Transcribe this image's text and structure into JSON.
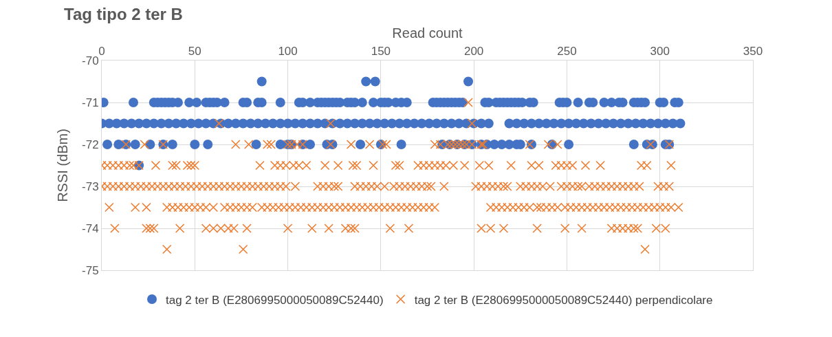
{
  "chart_data": {
    "type": "scatter",
    "title": "Tag tipo 2 ter B",
    "xlabel": "Read count",
    "ylabel": "RSSI (dBm)",
    "xlim": [
      0,
      350
    ],
    "xticks": [
      0,
      50,
      100,
      150,
      200,
      250,
      300,
      350
    ],
    "ylim": [
      -75,
      -70
    ],
    "yticks": [
      -75,
      -74,
      -73,
      -72,
      -71,
      -70
    ],
    "grid": true,
    "legend": "bottom",
    "series": [
      {
        "name": "tag 2 ter B (E2806995000050089C52440)",
        "color": "#4472c4",
        "marker": "circle",
        "x": [
          86,
          142,
          147,
          197,
          1,
          17,
          28,
          30,
          32,
          34,
          36,
          38,
          41,
          47,
          51,
          56,
          58,
          60,
          62,
          66,
          76,
          78,
          84,
          86,
          96,
          106,
          108,
          112,
          116,
          118,
          120,
          122,
          124,
          126,
          128,
          132,
          134,
          136,
          140,
          146,
          150,
          152,
          154,
          158,
          161,
          164,
          178,
          180,
          182,
          184,
          186,
          188,
          190,
          192,
          194,
          206,
          208,
          212,
          214,
          216,
          218,
          220,
          222,
          224,
          226,
          230,
          232,
          246,
          248,
          250,
          256,
          262,
          264,
          270,
          274,
          278,
          280,
          286,
          288,
          290,
          292,
          300,
          302,
          308,
          310,
          0,
          4,
          8,
          12,
          16,
          20,
          24,
          28,
          32,
          36,
          40,
          44,
          48,
          52,
          56,
          60,
          64,
          68,
          72,
          76,
          80,
          84,
          88,
          92,
          96,
          100,
          104,
          108,
          112,
          116,
          120,
          124,
          128,
          132,
          136,
          140,
          144,
          148,
          152,
          156,
          160,
          164,
          168,
          172,
          176,
          180,
          184,
          188,
          192,
          196,
          200,
          204,
          208,
          219,
          223,
          227,
          231,
          235,
          239,
          243,
          247,
          251,
          255,
          259,
          263,
          267,
          271,
          275,
          279,
          283,
          287,
          291,
          295,
          299,
          303,
          307,
          311,
          3,
          9,
          13,
          18,
          26,
          33,
          38,
          50,
          57,
          83,
          96,
          100,
          102,
          108,
          112,
          121,
          124,
          139,
          150,
          161,
          183,
          187,
          191,
          195,
          199,
          204,
          207,
          211,
          215,
          219,
          223,
          225,
          231,
          242,
          251,
          286,
          293,
          296,
          303,
          305,
          20
        ],
        "values": [
          -70.5,
          -70.5,
          -70.5,
          -70.5,
          -71,
          -71,
          -71,
          -71,
          -71,
          -71,
          -71,
          -71,
          -71,
          -71,
          -71,
          -71,
          -71,
          -71,
          -71,
          -71,
          -71,
          -71,
          -71,
          -71,
          -71,
          -71,
          -71,
          -71,
          -71,
          -71,
          -71,
          -71,
          -71,
          -71,
          -71,
          -71,
          -71,
          -71,
          -71,
          -71,
          -71,
          -71,
          -71,
          -71,
          -71,
          -71,
          -71,
          -71,
          -71,
          -71,
          -71,
          -71,
          -71,
          -71,
          -71,
          -71,
          -71,
          -71,
          -71,
          -71,
          -71,
          -71,
          -71,
          -71,
          -71,
          -71,
          -71,
          -71,
          -71,
          -71,
          -71,
          -71,
          -71,
          -71,
          -71,
          -71,
          -71,
          -71,
          -71,
          -71,
          -71,
          -71,
          -71,
          -71,
          -71,
          -71.5,
          -71.5,
          -71.5,
          -71.5,
          -71.5,
          -71.5,
          -71.5,
          -71.5,
          -71.5,
          -71.5,
          -71.5,
          -71.5,
          -71.5,
          -71.5,
          -71.5,
          -71.5,
          -71.5,
          -71.5,
          -71.5,
          -71.5,
          -71.5,
          -71.5,
          -71.5,
          -71.5,
          -71.5,
          -71.5,
          -71.5,
          -71.5,
          -71.5,
          -71.5,
          -71.5,
          -71.5,
          -71.5,
          -71.5,
          -71.5,
          -71.5,
          -71.5,
          -71.5,
          -71.5,
          -71.5,
          -71.5,
          -71.5,
          -71.5,
          -71.5,
          -71.5,
          -71.5,
          -71.5,
          -71.5,
          -71.5,
          -71.5,
          -71.5,
          -71.5,
          -71.5,
          -71.5,
          -71.5,
          -71.5,
          -71.5,
          -71.5,
          -71.5,
          -71.5,
          -71.5,
          -71.5,
          -71.5,
          -71.5,
          -71.5,
          -71.5,
          -71.5,
          -71.5,
          -71.5,
          -71.5,
          -71.5,
          -71.5,
          -71.5,
          -71.5,
          -71.5,
          -71.5,
          -71.5,
          -72,
          -72,
          -72,
          -72,
          -72,
          -72,
          -72,
          -72,
          -72,
          -72,
          -72,
          -72,
          -72,
          -72,
          -72,
          -72,
          -72,
          -72,
          -72,
          -72,
          -72,
          -72,
          -72,
          -72,
          -72,
          -72,
          -72,
          -72,
          -72,
          -72,
          -72,
          -72,
          -72,
          -72,
          -72,
          -72,
          -72,
          -72,
          -72,
          -72,
          -72.5
        ]
      },
      {
        "name": "tag 2 ter B (E2806995000050089C52440) perpendicolare",
        "color": "#ed7d31",
        "marker": "cross",
        "x": [
          197,
          63,
          123,
          199,
          13,
          23,
          33,
          72,
          79,
          89,
          91,
          102,
          100,
          105,
          108,
          123,
          134,
          144,
          151,
          153,
          179,
          182,
          186,
          188,
          190,
          192,
          194,
          196,
          199,
          204,
          205,
          230,
          240,
          245,
          295,
          305,
          0,
          3,
          6,
          9,
          12,
          15,
          17,
          20,
          29,
          38,
          40,
          46,
          48,
          50,
          85,
          93,
          96,
          99,
          103,
          106,
          110,
          120,
          127,
          135,
          137,
          146,
          158,
          160,
          170,
          173,
          176,
          179,
          182,
          185,
          189,
          195,
          203,
          208,
          220,
          231,
          235,
          244,
          247,
          250,
          253,
          260,
          268,
          290,
          293,
          306,
          0,
          3,
          6,
          9,
          12,
          15,
          18,
          21,
          24,
          27,
          30,
          33,
          36,
          39,
          42,
          45,
          48,
          51,
          54,
          57,
          60,
          63,
          66,
          69,
          72,
          75,
          78,
          81,
          84,
          87,
          90,
          93,
          96,
          99,
          104,
          116,
          119,
          122,
          125,
          127,
          136,
          139,
          142,
          145,
          148,
          152,
          157,
          160,
          163,
          166,
          169,
          172,
          175,
          177,
          184,
          201,
          204,
          207,
          210,
          213,
          216,
          218,
          225,
          228,
          231,
          234,
          237,
          241,
          247,
          250,
          253,
          256,
          258,
          262,
          265,
          268,
          271,
          274,
          277,
          280,
          283,
          286,
          289,
          299,
          302,
          305,
          4,
          18,
          24,
          35,
          38,
          41,
          44,
          47,
          50,
          53,
          56,
          60,
          66,
          69,
          72,
          75,
          78,
          81,
          86,
          89,
          92,
          95,
          98,
          101,
          104,
          107,
          110,
          113,
          116,
          119,
          122,
          125,
          128,
          131,
          134,
          137,
          140,
          143,
          146,
          149,
          152,
          155,
          158,
          161,
          164,
          167,
          170,
          173,
          176,
          179,
          209,
          212,
          215,
          218,
          221,
          224,
          227,
          230,
          234,
          236,
          239,
          242,
          245,
          249,
          252,
          255,
          258,
          261,
          264,
          267,
          270,
          273,
          276,
          279,
          282,
          285,
          288,
          291,
          294,
          297,
          300,
          303,
          306,
          310,
          7,
          24,
          26,
          28,
          42,
          56,
          60,
          64,
          68,
          71,
          78,
          100,
          113,
          122,
          131,
          134,
          136,
          155,
          165,
          204,
          209,
          216,
          234,
          249,
          258,
          274,
          277,
          280,
          283,
          286,
          288,
          298,
          303,
          35,
          76,
          292
        ],
        "values": [
          -71,
          -71.5,
          -71.5,
          -71.5,
          -72,
          -72,
          -72,
          -72,
          -72,
          -72,
          -72,
          -72,
          -72,
          -72,
          -72,
          -72,
          -72,
          -72,
          -72,
          -72,
          -72,
          -72,
          -72,
          -72,
          -72,
          -72,
          -72,
          -72,
          -72,
          -72,
          -72,
          -72,
          -72,
          -72,
          -72,
          -72,
          -72.5,
          -72.5,
          -72.5,
          -72.5,
          -72.5,
          -72.5,
          -72.5,
          -72.5,
          -72.5,
          -72.5,
          -72.5,
          -72.5,
          -72.5,
          -72.5,
          -72.5,
          -72.5,
          -72.5,
          -72.5,
          -72.5,
          -72.5,
          -72.5,
          -72.5,
          -72.5,
          -72.5,
          -72.5,
          -72.5,
          -72.5,
          -72.5,
          -72.5,
          -72.5,
          -72.5,
          -72.5,
          -72.5,
          -72.5,
          -72.5,
          -72.5,
          -72.5,
          -72.5,
          -72.5,
          -72.5,
          -72.5,
          -72.5,
          -72.5,
          -72.5,
          -72.5,
          -72.5,
          -72.5,
          -72.5,
          -72.5,
          -72.5,
          -73,
          -73,
          -73,
          -73,
          -73,
          -73,
          -73,
          -73,
          -73,
          -73,
          -73,
          -73,
          -73,
          -73,
          -73,
          -73,
          -73,
          -73,
          -73,
          -73,
          -73,
          -73,
          -73,
          -73,
          -73,
          -73,
          -73,
          -73,
          -73,
          -73,
          -73,
          -73,
          -73,
          -73,
          -73,
          -73,
          -73,
          -73,
          -73,
          -73,
          -73,
          -73,
          -73,
          -73,
          -73,
          -73,
          -73,
          -73,
          -73,
          -73,
          -73,
          -73,
          -73,
          -73,
          -73,
          -73,
          -73,
          -73,
          -73,
          -73,
          -73,
          -73,
          -73,
          -73,
          -73,
          -73,
          -73,
          -73,
          -73,
          -73,
          -73,
          -73,
          -73,
          -73,
          -73,
          -73,
          -73,
          -73,
          -73,
          -73,
          -73,
          -73,
          -73,
          -73,
          -73,
          -73,
          -73.5,
          -73.5,
          -73.5,
          -73.5,
          -73.5,
          -73.5,
          -73.5,
          -73.5,
          -73.5,
          -73.5,
          -73.5,
          -73.5,
          -73.5,
          -73.5,
          -73.5,
          -73.5,
          -73.5,
          -73.5,
          -73.5,
          -73.5,
          -73.5,
          -73.5,
          -73.5,
          -73.5,
          -73.5,
          -73.5,
          -73.5,
          -73.5,
          -73.5,
          -73.5,
          -73.5,
          -73.5,
          -73.5,
          -73.5,
          -73.5,
          -73.5,
          -73.5,
          -73.5,
          -73.5,
          -73.5,
          -73.5,
          -73.5,
          -73.5,
          -73.5,
          -73.5,
          -73.5,
          -73.5,
          -73.5,
          -73.5,
          -73.5,
          -73.5,
          -73.5,
          -73.5,
          -73.5,
          -73.5,
          -73.5,
          -73.5,
          -73.5,
          -73.5,
          -73.5,
          -73.5,
          -73.5,
          -73.5,
          -73.5,
          -73.5,
          -73.5,
          -73.5,
          -73.5,
          -73.5,
          -73.5,
          -73.5,
          -73.5,
          -73.5,
          -73.5,
          -73.5,
          -73.5,
          -73.5,
          -73.5,
          -73.5,
          -73.5,
          -73.5,
          -73.5,
          -73.5,
          -73.5,
          -74,
          -74,
          -74,
          -74,
          -74,
          -74,
          -74,
          -74,
          -74,
          -74,
          -74,
          -74,
          -74,
          -74,
          -74,
          -74,
          -74,
          -74,
          -74,
          -74,
          -74,
          -74,
          -74,
          -74,
          -74,
          -74,
          -74,
          -74,
          -74,
          -74,
          -74,
          -74,
          -74,
          -74.5,
          -74.5,
          -74.5
        ]
      }
    ]
  }
}
